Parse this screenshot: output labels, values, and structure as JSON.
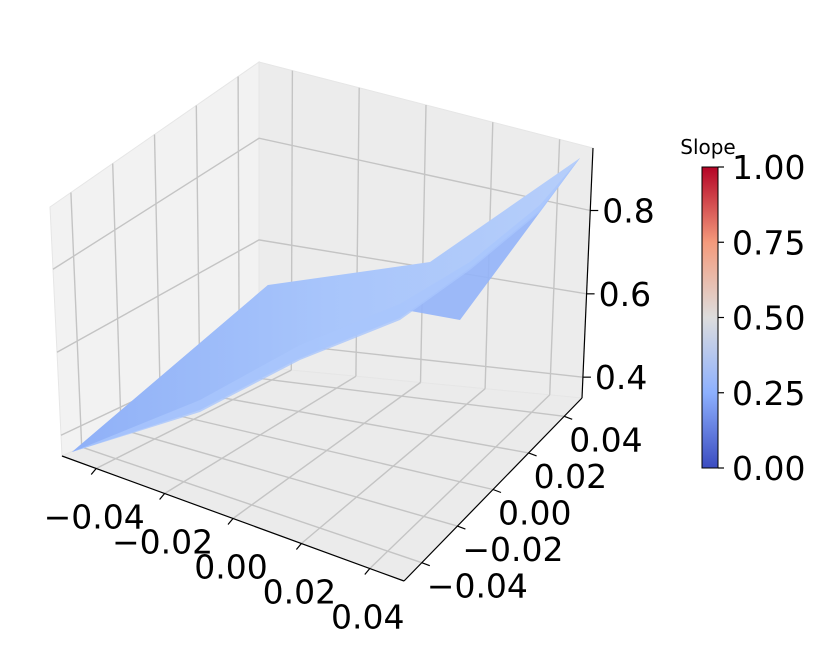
{
  "chart_data": {
    "type": "surface",
    "xlabel": "",
    "ylabel": "",
    "zlabel": "",
    "x_ticks": [
      "−0.04",
      "−0.02",
      "0.00",
      "0.02",
      "0.04"
    ],
    "y_ticks": [
      "−0.04",
      "−0.02",
      "0.00",
      "0.02",
      "0.04"
    ],
    "z_ticks": [
      "0.4",
      "0.6",
      "0.8"
    ],
    "xlim": [
      -0.05,
      0.05
    ],
    "ylim": [
      -0.05,
      0.05
    ],
    "zlim": [
      0.35,
      0.95
    ],
    "grid": true,
    "colormap": "coolwarm",
    "surface_corners": [
      {
        "x": -0.05,
        "y": -0.05,
        "z": 0.37
      },
      {
        "x": 0.05,
        "y": -0.05,
        "z": 0.62
      },
      {
        "x": -0.05,
        "y": 0.05,
        "z": 0.6
      },
      {
        "x": 0.05,
        "y": 0.05,
        "z": 0.95
      }
    ],
    "surface_color_value": 0.28,
    "colorbar": {
      "title": "Slope",
      "min": 0.0,
      "max": 1.0,
      "ticks": [
        "0.00",
        "0.25",
        "0.50",
        "0.75",
        "1.00"
      ]
    }
  }
}
